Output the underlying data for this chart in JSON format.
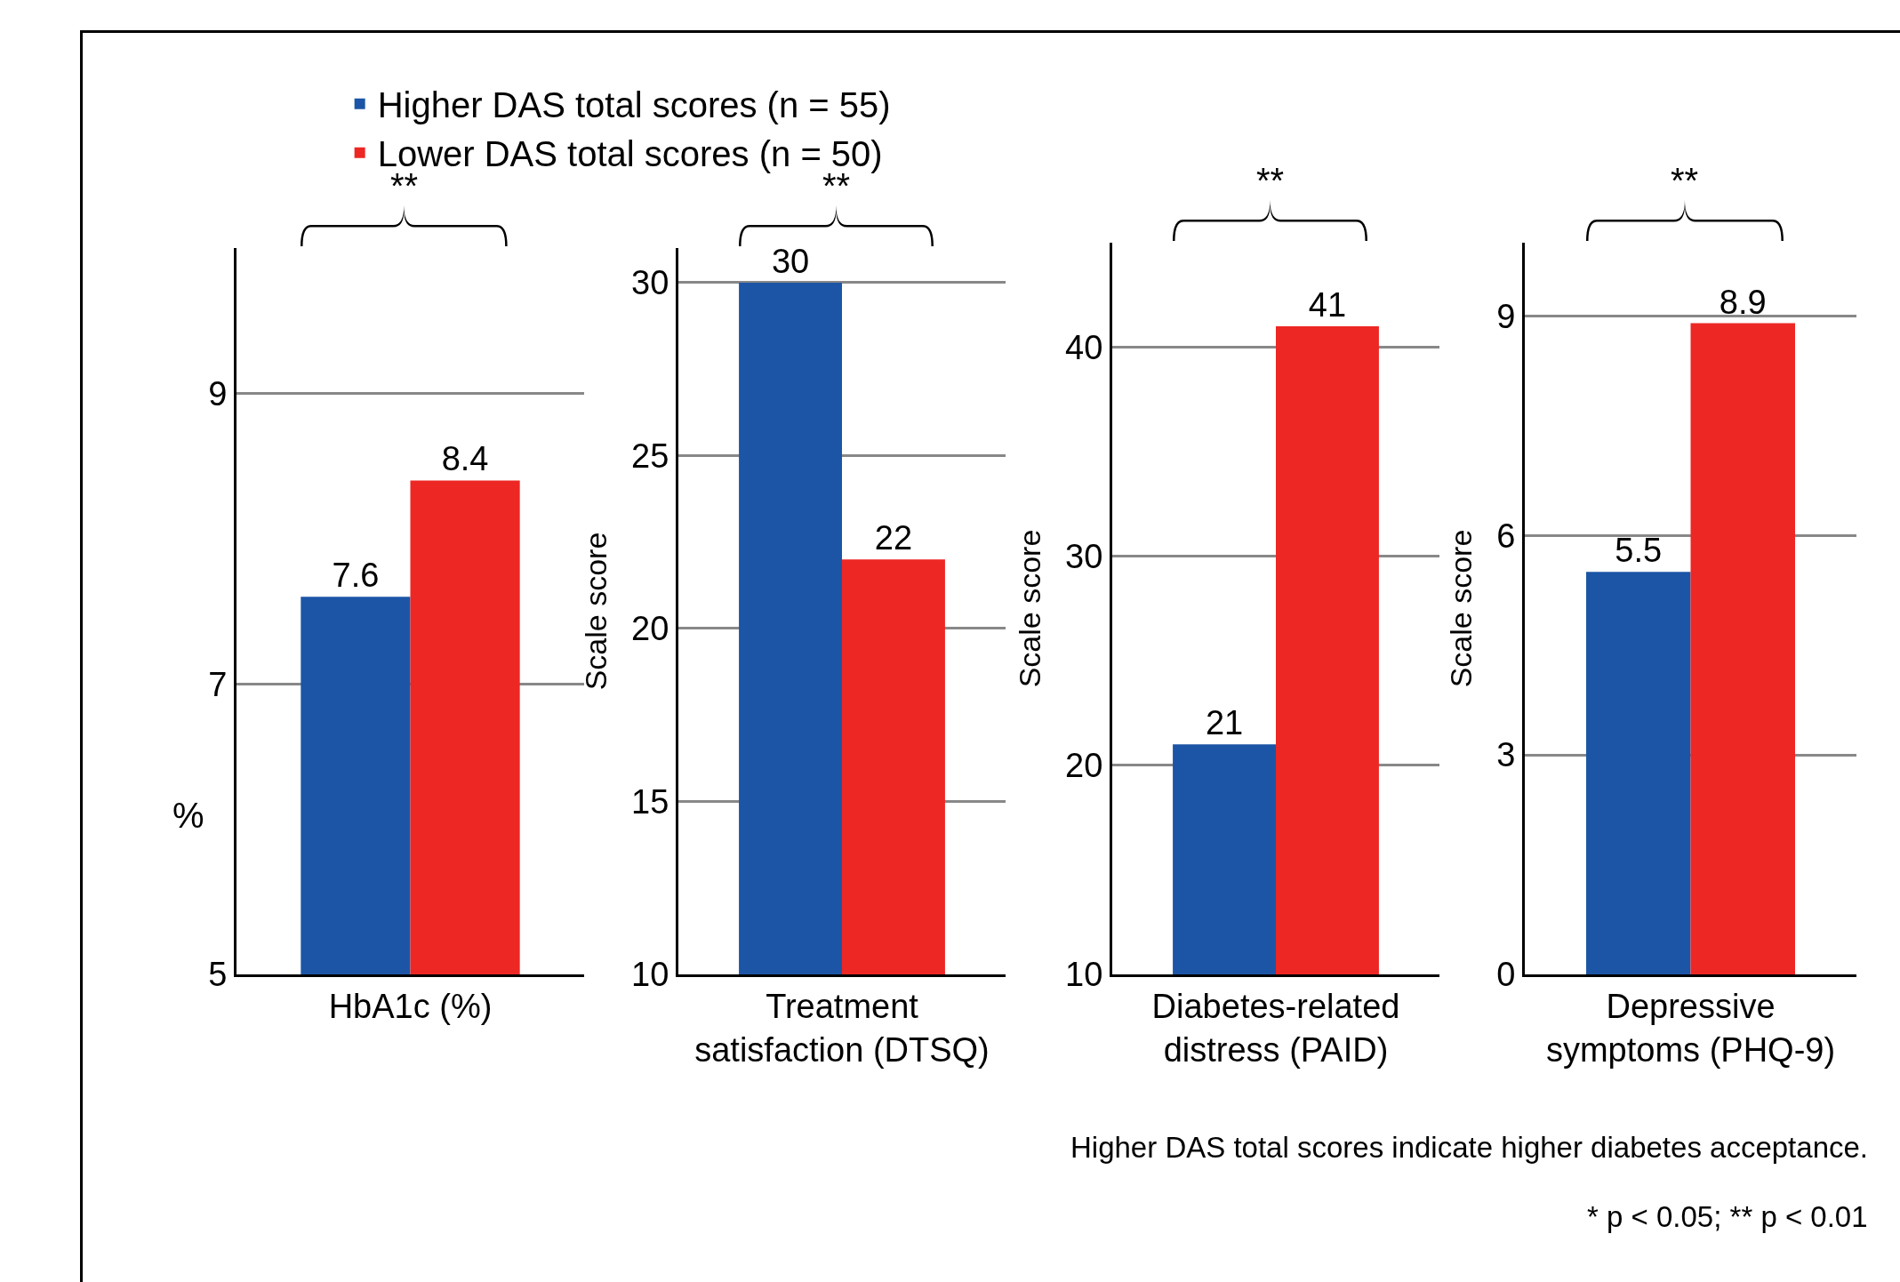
{
  "chart_data": [
    {
      "type": "bar",
      "categories": [
        "HbA1c (%)"
      ],
      "series": [
        {
          "name": "Higher DAS total scores (n = 55)",
          "color": "#1c55a6",
          "values": [
            7.6
          ]
        },
        {
          "name": "Lower DAS total scores (n = 50)",
          "color": "#ed2724",
          "values": [
            8.4
          ]
        }
      ],
      "ylabel": "%",
      "ylim": [
        5,
        10
      ],
      "yticks": [
        5,
        7,
        9
      ],
      "grid": "y",
      "legend": "top",
      "data_labels": true,
      "annotations": [
        "**"
      ]
    },
    {
      "type": "bar",
      "categories": [
        "Treatment satisfaction (DTSQ)"
      ],
      "series": [
        {
          "color": "#1c55a6",
          "values": [
            30
          ]
        },
        {
          "color": "#ed2724",
          "values": [
            22
          ]
        }
      ],
      "ylabel": "Scale score",
      "ylim": [
        10,
        31
      ],
      "yticks": [
        10,
        15,
        20,
        25,
        30
      ],
      "grid": "y",
      "data_labels": true,
      "annotations": [
        "**"
      ]
    },
    {
      "type": "bar",
      "categories": [
        "Diabetes-related distress (PAID)"
      ],
      "series": [
        {
          "color": "#1c55a6",
          "values": [
            21
          ]
        },
        {
          "color": "#ed2724",
          "values": [
            41
          ]
        }
      ],
      "ylabel": "Scale score",
      "ylim": [
        10,
        45
      ],
      "yticks": [
        10,
        20,
        30,
        40
      ],
      "grid": "y",
      "data_labels": true,
      "annotations": [
        "**"
      ]
    },
    {
      "type": "bar",
      "categories": [
        "Depressive symptoms (PHQ-9)"
      ],
      "series": [
        {
          "color": "#1c55a6",
          "values": [
            5.5
          ]
        },
        {
          "color": "#ed2724",
          "values": [
            8.9
          ]
        }
      ],
      "ylabel": "Scale score",
      "ylim": [
        0,
        10
      ],
      "yticks": [
        0,
        3,
        6,
        9
      ],
      "grid": "y",
      "data_labels": true,
      "annotations": [
        "**",
        "Higher DAS total scores indicate higher diabetes acceptance.",
        "* p < 0.05; ** p < 0.01"
      ]
    }
  ]
}
